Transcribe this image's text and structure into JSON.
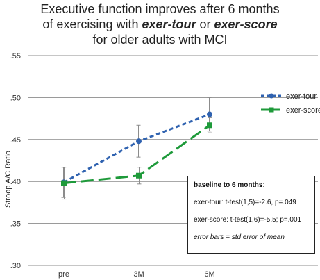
{
  "title": {
    "line1": "Executive function improves after 6 months",
    "line2_pre": "of exercising with ",
    "line2_em1": "exer-tour",
    "line2_mid": " or ",
    "line2_em2": "exer-score",
    "line3": "for older adults with MCI"
  },
  "stats_box": {
    "heading": "baseline to 6 months:",
    "line1": "exer-tour: t-test(1,5)=-2.6, p=.049",
    "line2": "exer-score: t-test(1,6)=-5.5; p=.001",
    "note": "error bars = std error of mean"
  },
  "chart_data": {
    "type": "line",
    "title": "Executive function improves after 6 months of exercising with exer-tour or exer-score for older adults with MCI",
    "xlabel": "",
    "ylabel": "Stroop A/C Ratio",
    "categories": [
      "pre",
      "3M",
      "6M"
    ],
    "ylim": [
      0.3,
      0.55
    ],
    "yticks": [
      ".30",
      ".35",
      ".40",
      ".45",
      ".50",
      ".55"
    ],
    "grid": true,
    "legend": "right",
    "series": [
      {
        "name": "exer-tour",
        "values": [
          0.399,
          0.448,
          0.48
        ],
        "err": [
          0.018,
          0.019,
          0.02
        ],
        "color": "#2f62b0",
        "marker": "circle",
        "dash": "short"
      },
      {
        "name": "exer-score",
        "values": [
          0.398,
          0.407,
          0.467
        ],
        "err": [
          0.019,
          0.01,
          0.009
        ],
        "color": "#1e9a3a",
        "marker": "square",
        "dash": "long"
      }
    ]
  }
}
